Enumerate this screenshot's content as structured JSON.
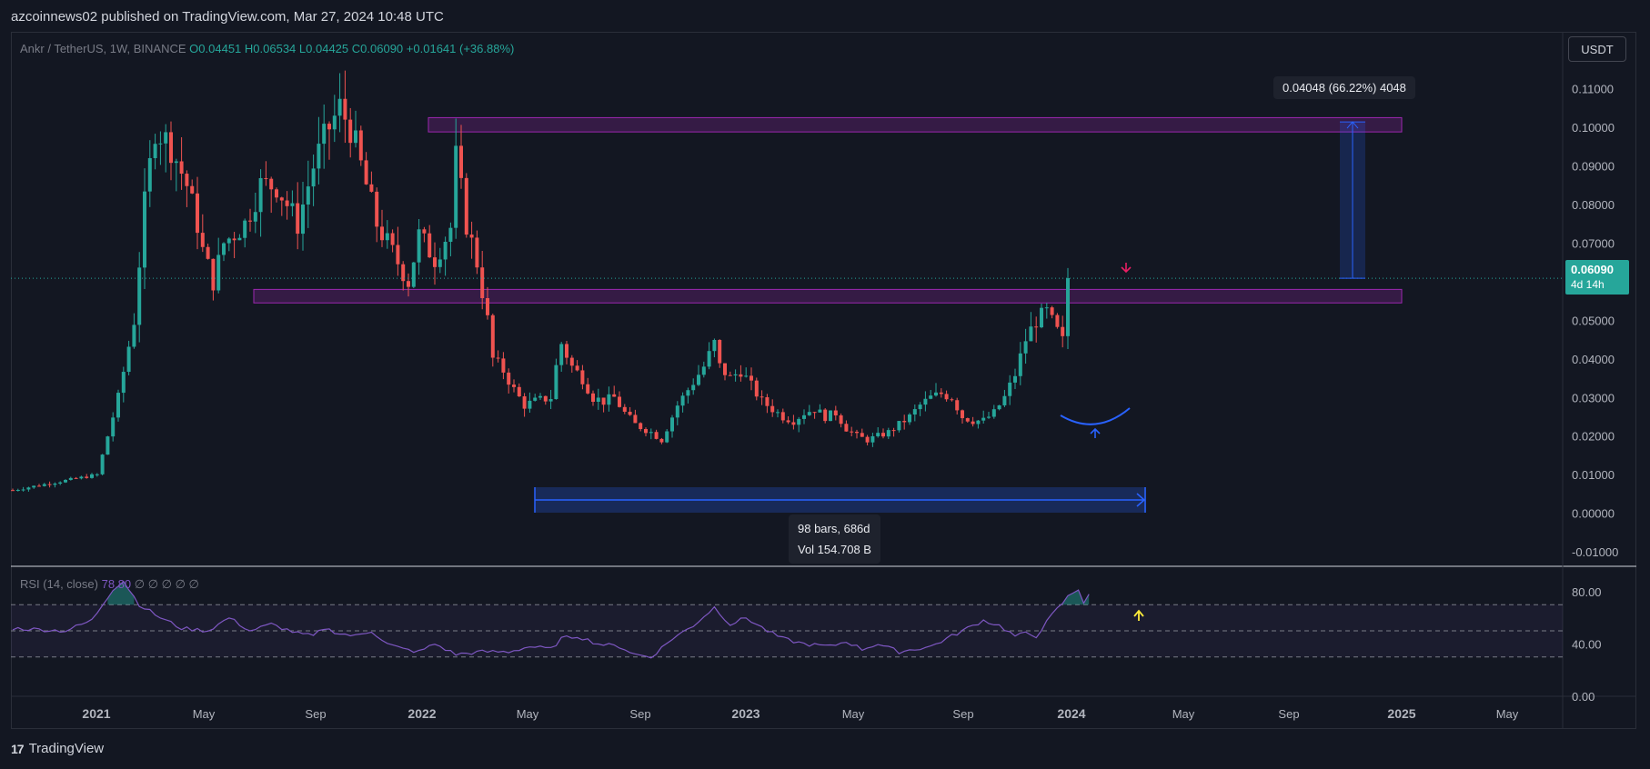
{
  "header": {
    "published": "azcoinnews02 published on TradingView.com, Mar 27, 2024 10:48 UTC"
  },
  "legend": {
    "symbol": "Ankr / TetherUS, 1W, BINANCE",
    "open": "O0.04451",
    "high": "H0.06534",
    "low": "L0.04425",
    "close": "C0.06090",
    "change": "+0.01641 (+36.88%)"
  },
  "currency_button": "USDT",
  "price_badge": {
    "price": "0.06090",
    "countdown": "4d 14h"
  },
  "range_tooltip": "0.04048 (66.22%) 4048",
  "bars_tooltip": {
    "bars": "98 bars, 686d",
    "vol": "Vol 154.708 B"
  },
  "rsi_legend": {
    "label": "RSI (14, close)",
    "value": "78.80",
    "extra": "∅ ∅ ∅ ∅ ∅"
  },
  "branding": {
    "logo_text": "TradingView",
    "logo_mark": "17"
  },
  "colors": {
    "up": "#26a69a",
    "down": "#ef5350",
    "zone": "#9c27b0",
    "measure": "#2962ff",
    "rsi": "#7e57c2",
    "background": "#131722"
  },
  "chart_data": {
    "type": "candlestick",
    "timeframe": "1W",
    "y_ticks": [
      "0.11000",
      "0.10000",
      "0.09000",
      "0.08000",
      "0.07000",
      "0.06000",
      "0.05000",
      "0.04000",
      "0.03000",
      "0.02000",
      "0.01000",
      "0.00000",
      "-0.01000"
    ],
    "x_ticks": [
      "2021",
      "May",
      "Sep",
      "2022",
      "May",
      "Sep",
      "2023",
      "May",
      "Sep",
      "2024",
      "May",
      "Sep",
      "2025",
      "May"
    ],
    "ylim": [
      -0.0135,
      0.1245
    ],
    "last_price": 0.0609,
    "resistance_zones": [
      [
        0.0988,
        0.1025
      ],
      [
        0.0545,
        0.058
      ]
    ],
    "measure_vertical": {
      "from": 0.0609,
      "to": 0.1014,
      "change": 0.04048,
      "percent": 66.22
    },
    "measure_horizontal": {
      "bars": 98,
      "days": 686,
      "volume": "154.708 B"
    },
    "rsi": {
      "length": 14,
      "source": "close",
      "current": 78.8,
      "y_ticks": [
        "80.00",
        "40.00",
        "0.00"
      ],
      "ylim": [
        0,
        100
      ],
      "bands": [
        70,
        50,
        30
      ],
      "anchors": [
        [
          0,
          52
        ],
        [
          10,
          50
        ],
        [
          15,
          58
        ],
        [
          19,
          82
        ],
        [
          21,
          88
        ],
        [
          24,
          70
        ],
        [
          28,
          60
        ],
        [
          32,
          52
        ],
        [
          37,
          50
        ],
        [
          41,
          60
        ],
        [
          45,
          50
        ],
        [
          49,
          55
        ],
        [
          54,
          48
        ],
        [
          57,
          46
        ],
        [
          59,
          52
        ],
        [
          62,
          48
        ],
        [
          65,
          46
        ],
        [
          68,
          50
        ],
        [
          71,
          40
        ],
        [
          74,
          36
        ],
        [
          77,
          34
        ],
        [
          80,
          40
        ],
        [
          84,
          32
        ],
        [
          89,
          34
        ],
        [
          94,
          34
        ],
        [
          98,
          38
        ],
        [
          102,
          36
        ],
        [
          104,
          44
        ],
        [
          107,
          46
        ],
        [
          111,
          40
        ],
        [
          115,
          38
        ],
        [
          118,
          32
        ],
        [
          121,
          30
        ],
        [
          125,
          44
        ],
        [
          129,
          54
        ],
        [
          133,
          68
        ],
        [
          136,
          55
        ],
        [
          139,
          60
        ],
        [
          143,
          50
        ],
        [
          146,
          44
        ],
        [
          150,
          40
        ],
        [
          155,
          38
        ],
        [
          158,
          42
        ],
        [
          161,
          36
        ],
        [
          164,
          40
        ],
        [
          168,
          34
        ],
        [
          171,
          36
        ],
        [
          174,
          38
        ],
        [
          177,
          44
        ],
        [
          181,
          52
        ],
        [
          184,
          58
        ],
        [
          187,
          54
        ],
        [
          190,
          46
        ],
        [
          192,
          48
        ],
        [
          194,
          46
        ],
        [
          197,
          62
        ],
        [
          200,
          76
        ],
        [
          202,
          82
        ],
        [
          203,
          72
        ],
        [
          204,
          78
        ]
      ]
    },
    "price_anchors": [
      [
        0,
        0.006
      ],
      [
        16,
        0.01
      ],
      [
        20,
        0.03
      ],
      [
        23,
        0.05
      ],
      [
        25,
        0.08
      ],
      [
        27,
        0.1
      ],
      [
        30,
        0.095
      ],
      [
        33,
        0.085
      ],
      [
        35,
        0.075
      ],
      [
        36,
        0.068
      ],
      [
        38,
        0.06
      ],
      [
        40,
        0.07
      ],
      [
        44,
        0.075
      ],
      [
        47,
        0.085
      ],
      [
        50,
        0.085
      ],
      [
        54,
        0.075
      ],
      [
        57,
        0.09
      ],
      [
        60,
        0.1
      ],
      [
        62,
        0.105
      ],
      [
        64,
        0.1
      ],
      [
        65,
        0.095
      ],
      [
        67,
        0.085
      ],
      [
        69,
        0.075
      ],
      [
        71,
        0.07
      ],
      [
        73,
        0.065
      ],
      [
        75,
        0.06
      ],
      [
        77,
        0.072
      ],
      [
        80,
        0.066
      ],
      [
        83,
        0.074
      ],
      [
        84,
        0.092
      ],
      [
        86,
        0.075
      ],
      [
        88,
        0.065
      ],
      [
        90,
        0.05
      ],
      [
        91,
        0.04
      ],
      [
        93,
        0.037
      ],
      [
        95,
        0.032
      ],
      [
        97,
        0.028
      ],
      [
        99,
        0.029
      ],
      [
        102,
        0.03
      ],
      [
        103,
        0.038
      ],
      [
        104,
        0.044
      ],
      [
        106,
        0.038
      ],
      [
        108,
        0.035
      ],
      [
        110,
        0.03
      ],
      [
        112,
        0.029
      ],
      [
        114,
        0.03
      ],
      [
        116,
        0.026
      ],
      [
        118,
        0.023
      ],
      [
        121,
        0.021
      ],
      [
        123,
        0.019
      ],
      [
        124,
        0.022
      ],
      [
        126,
        0.028
      ],
      [
        128,
        0.032
      ],
      [
        131,
        0.038
      ],
      [
        133,
        0.044
      ],
      [
        134,
        0.038
      ],
      [
        136,
        0.035
      ],
      [
        138,
        0.037
      ],
      [
        140,
        0.033
      ],
      [
        142,
        0.029
      ],
      [
        144,
        0.027
      ],
      [
        146,
        0.025
      ],
      [
        148,
        0.024
      ],
      [
        150,
        0.026
      ],
      [
        152,
        0.027
      ],
      [
        154,
        0.025
      ],
      [
        156,
        0.026
      ],
      [
        158,
        0.022
      ],
      [
        160,
        0.02
      ],
      [
        162,
        0.019
      ],
      [
        164,
        0.02
      ],
      [
        166,
        0.021
      ],
      [
        168,
        0.023
      ],
      [
        170,
        0.025
      ],
      [
        172,
        0.028
      ],
      [
        174,
        0.03
      ],
      [
        176,
        0.031
      ],
      [
        178,
        0.03
      ],
      [
        180,
        0.025
      ],
      [
        182,
        0.024
      ],
      [
        184,
        0.024
      ],
      [
        186,
        0.026
      ],
      [
        188,
        0.03
      ],
      [
        190,
        0.036
      ],
      [
        192,
        0.045
      ],
      [
        194,
        0.05
      ],
      [
        196,
        0.052
      ],
      [
        198,
        0.047
      ],
      [
        199,
        0.0445
      ],
      [
        200,
        0.0609
      ]
    ]
  }
}
